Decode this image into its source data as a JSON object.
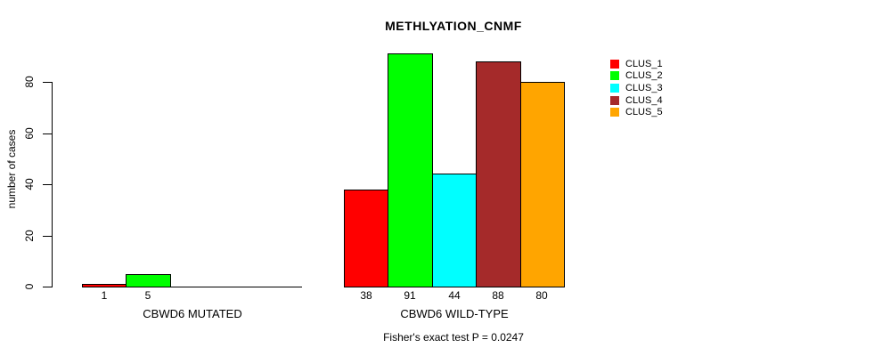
{
  "chart_data": {
    "type": "bar",
    "title": "METHLYATION_CNMF",
    "ylabel": "number of cases",
    "xlabel": "",
    "subtitle": "Fisher's exact test P = 0.0247",
    "ylim": [
      0,
      92
    ],
    "yticks": [
      0,
      20,
      40,
      60,
      80
    ],
    "grid": false,
    "legend_position": "right",
    "series": [
      {
        "name": "CLUS_1",
        "color": "#ff0000"
      },
      {
        "name": "CLUS_2",
        "color": "#00ff00"
      },
      {
        "name": "CLUS_3",
        "color": "#00ffff"
      },
      {
        "name": "CLUS_4",
        "color": "#a52a2a"
      },
      {
        "name": "CLUS_5",
        "color": "#ffa500"
      }
    ],
    "groups": [
      {
        "label": "CBWD6 MUTATED",
        "values": [
          1,
          5,
          0,
          0,
          0
        ]
      },
      {
        "label": "CBWD6 WILD-TYPE",
        "values": [
          38,
          91,
          44,
          88,
          80
        ]
      }
    ]
  }
}
